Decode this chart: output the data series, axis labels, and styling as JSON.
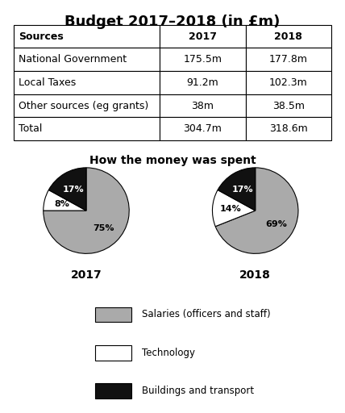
{
  "title": "Budget 2017–2018 (in £m)",
  "table": {
    "headers": [
      "Sources",
      "2017",
      "2018"
    ],
    "rows": [
      [
        "National Government",
        "175.5m",
        "177.8m"
      ],
      [
        "Local Taxes",
        "91.2m",
        "102.3m"
      ],
      [
        "Other sources (eg grants)",
        "38m",
        "38.5m"
      ],
      [
        "Total",
        "304.7m",
        "318.6m"
      ]
    ]
  },
  "pie_title": "How the money was spent",
  "pie_2017": {
    "label": "2017",
    "values": [
      75,
      8,
      17
    ],
    "pct_labels": [
      "75%",
      "8%",
      "17%"
    ],
    "colors": [
      "#aaaaaa",
      "#ffffff",
      "#111111"
    ],
    "startangle": 90
  },
  "pie_2018": {
    "label": "2018",
    "values": [
      69,
      14,
      17
    ],
    "pct_labels": [
      "69%",
      "14%",
      "17%"
    ],
    "colors": [
      "#aaaaaa",
      "#ffffff",
      "#111111"
    ],
    "startangle": 90
  },
  "legend_labels": [
    "Salaries (officers and staff)",
    "Technology",
    "Buildings and transport"
  ],
  "legend_colors": [
    "#aaaaaa",
    "#ffffff",
    "#111111"
  ],
  "background_color": "#ffffff",
  "title_fontsize": 13,
  "pie_title_fontsize": 10,
  "table_header_fontsize": 9,
  "table_body_fontsize": 9
}
